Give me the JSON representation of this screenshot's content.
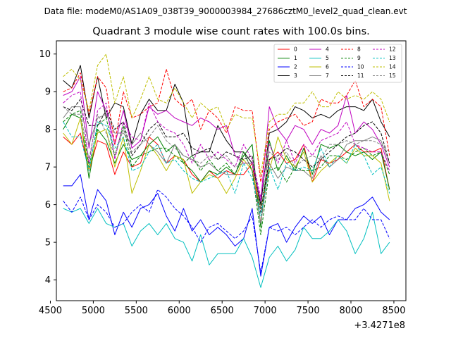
{
  "chart_data": {
    "type": "line",
    "file_label": "Data file: modeM0/AS1A09_038T39_9000003984_27686cztM0_level2_quad_clean.evt",
    "title": "Quadrant 3 module wise count rates with 100.0s bins.",
    "x_offset_label": "+3.4271e8",
    "xlim": [
      4570,
      8640
    ],
    "ylim": [
      3.45,
      10.35
    ],
    "xticks": [
      4500,
      5000,
      5500,
      6000,
      6500,
      7000,
      7500,
      8000,
      8500
    ],
    "yticks": [
      4,
      5,
      6,
      7,
      8,
      9,
      10
    ],
    "x": [
      4650,
      4750,
      4850,
      4950,
      5050,
      5150,
      5250,
      5350,
      5450,
      5550,
      5650,
      5750,
      5850,
      5950,
      6050,
      6150,
      6250,
      6350,
      6450,
      6550,
      6650,
      6750,
      6850,
      6950,
      7050,
      7150,
      7250,
      7350,
      7450,
      7550,
      7650,
      7750,
      7850,
      7950,
      8050,
      8150,
      8250,
      8350,
      8450
    ],
    "series": [
      {
        "name": "0",
        "color": "#ff0000",
        "dash": false,
        "values": [
          7.8,
          7.6,
          7.9,
          6.9,
          7.7,
          7.6,
          6.8,
          7.4,
          7.0,
          7.1,
          7.8,
          7.6,
          7.1,
          7.3,
          7.2,
          6.8,
          6.6,
          6.9,
          6.7,
          6.9,
          6.8,
          6.8,
          7.1,
          5.5,
          7.2,
          7.4,
          7.1,
          7.2,
          7.6,
          6.6,
          7.2,
          7.1,
          7.2,
          7.4,
          7.6,
          7.4,
          7.4,
          7.5,
          6.4
        ]
      },
      {
        "name": "1",
        "color": "#008000",
        "dash": false,
        "values": [
          8.0,
          8.4,
          8.3,
          6.7,
          8.0,
          7.7,
          7.1,
          7.6,
          7.2,
          7.3,
          7.6,
          7.8,
          7.4,
          7.6,
          7.1,
          6.9,
          6.6,
          6.9,
          6.8,
          7.0,
          6.8,
          7.3,
          7.6,
          5.4,
          7.7,
          6.9,
          7.3,
          6.9,
          7.5,
          6.8,
          7.6,
          7.5,
          7.6,
          7.4,
          7.3,
          7.4,
          7.2,
          7.4,
          6.4
        ]
      },
      {
        "name": "2",
        "color": "#0000ff",
        "dash": false,
        "values": [
          6.5,
          6.5,
          6.8,
          5.6,
          6.4,
          6.1,
          5.2,
          5.8,
          5.4,
          5.9,
          6.0,
          6.3,
          5.7,
          5.3,
          5.9,
          5.3,
          5.6,
          5.2,
          5.4,
          5.2,
          4.9,
          5.1,
          5.9,
          4.1,
          5.4,
          5.5,
          5.0,
          5.4,
          5.7,
          5.5,
          5.7,
          5.2,
          5.6,
          5.6,
          5.9,
          6.0,
          6.2,
          5.8,
          5.6
        ]
      },
      {
        "name": "3",
        "color": "#000000",
        "dash": false,
        "values": [
          9.3,
          9.1,
          9.7,
          8.3,
          9.4,
          8.3,
          8.7,
          8.6,
          7.6,
          8.4,
          8.8,
          8.5,
          8.5,
          9.2,
          8.7,
          7.3,
          7.4,
          7.4,
          8.1,
          7.7,
          7.4,
          7.4,
          7.1,
          6.0,
          7.9,
          8.0,
          8.2,
          8.6,
          8.5,
          8.3,
          8.4,
          8.3,
          8.5,
          8.6,
          8.6,
          8.5,
          8.8,
          8.2,
          7.8
        ]
      },
      {
        "name": "4",
        "color": "#bf00bf",
        "dash": false,
        "values": [
          8.9,
          9.0,
          9.4,
          7.5,
          9.0,
          8.5,
          7.6,
          8.5,
          7.5,
          7.7,
          8.6,
          8.4,
          8.5,
          8.3,
          8.2,
          8.1,
          8.3,
          8.2,
          8.0,
          8.1,
          7.3,
          7.1,
          7.1,
          6.1,
          8.6,
          8.0,
          7.7,
          8.1,
          8.0,
          7.6,
          8.0,
          7.9,
          8.1,
          8.9,
          7.9,
          8.2,
          8.0,
          7.6,
          7.0
        ]
      },
      {
        "name": "5",
        "color": "#00bfbf",
        "dash": false,
        "values": [
          5.9,
          5.8,
          5.9,
          5.5,
          5.9,
          5.5,
          5.4,
          5.5,
          4.9,
          5.3,
          5.5,
          5.2,
          5.5,
          5.1,
          5.0,
          4.5,
          5.2,
          4.4,
          4.7,
          4.7,
          4.7,
          5.1,
          4.6,
          3.8,
          4.6,
          4.9,
          4.5,
          4.8,
          5.4,
          5.1,
          5.1,
          5.3,
          5.6,
          5.3,
          4.7,
          5.1,
          5.8,
          4.7,
          5.0
        ]
      },
      {
        "name": "6",
        "color": "#bfbf00",
        "dash": false,
        "values": [
          7.9,
          7.6,
          8.3,
          6.9,
          7.9,
          8.0,
          7.0,
          7.8,
          6.3,
          6.9,
          7.6,
          7.3,
          6.9,
          7.3,
          7.2,
          6.3,
          6.6,
          6.8,
          6.7,
          6.3,
          6.7,
          7.2,
          6.9,
          5.9,
          6.9,
          7.8,
          7.2,
          7.0,
          7.4,
          6.6,
          6.9,
          7.1,
          7.3,
          7.1,
          7.5,
          7.3,
          7.3,
          7.1,
          6.1
        ]
      },
      {
        "name": "7",
        "color": "#808080",
        "dash": false,
        "values": [
          8.3,
          8.6,
          8.6,
          7.6,
          8.3,
          8.4,
          7.9,
          7.9,
          7.6,
          7.9,
          7.6,
          7.4,
          7.1,
          7.6,
          7.3,
          7.2,
          7.0,
          7.1,
          6.9,
          6.8,
          6.8,
          7.4,
          6.9,
          5.5,
          7.1,
          6.7,
          7.0,
          6.9,
          6.9,
          6.7,
          7.3,
          7.0,
          7.2,
          7.6,
          7.7,
          7.7,
          7.8,
          7.7,
          7.1
        ]
      },
      {
        "name": "8",
        "color": "#ff0000",
        "dash": true,
        "values": [
          9.0,
          9.1,
          9.5,
          8.4,
          9.4,
          9.1,
          7.6,
          9.0,
          8.3,
          8.4,
          8.6,
          8.7,
          9.6,
          8.8,
          8.6,
          8.8,
          8.0,
          8.5,
          8.3,
          7.9,
          8.6,
          8.5,
          8.5,
          6.6,
          8.0,
          8.2,
          8.3,
          8.4,
          8.1,
          8.2,
          8.8,
          8.7,
          8.7,
          8.9,
          9.3,
          8.6,
          8.8,
          8.6,
          7.3
        ]
      },
      {
        "name": "9",
        "color": "#008000",
        "dash": true,
        "values": [
          8.2,
          8.4,
          8.5,
          7.0,
          8.1,
          8.3,
          7.3,
          8.1,
          7.0,
          7.3,
          7.4,
          7.5,
          7.5,
          7.3,
          7.1,
          7.3,
          6.9,
          7.2,
          6.9,
          7.1,
          6.8,
          7.4,
          6.9,
          5.2,
          6.9,
          7.0,
          6.6,
          7.0,
          6.9,
          6.9,
          7.0,
          7.3,
          7.3,
          7.2,
          7.4,
          7.5,
          7.3,
          7.4,
          6.8
        ]
      },
      {
        "name": "10",
        "color": "#0000ff",
        "dash": true,
        "values": [
          6.1,
          5.8,
          6.2,
          5.6,
          6.0,
          5.8,
          5.4,
          5.5,
          5.8,
          6.0,
          5.8,
          6.4,
          6.2,
          5.9,
          5.7,
          5.4,
          5.0,
          5.4,
          5.5,
          5.3,
          5.1,
          5.3,
          5.7,
          4.2,
          5.4,
          5.3,
          5.4,
          5.2,
          5.4,
          5.6,
          5.4,
          5.6,
          5.7,
          5.6,
          5.6,
          5.9,
          5.6,
          5.6,
          5.1
        ]
      },
      {
        "name": "11",
        "color": "#000000",
        "dash": true,
        "values": [
          8.6,
          8.5,
          8.8,
          8.1,
          8.1,
          8.5,
          8.0,
          8.2,
          7.3,
          7.6,
          8.0,
          8.2,
          7.8,
          7.8,
          7.9,
          7.5,
          7.4,
          7.5,
          7.2,
          7.4,
          7.3,
          7.2,
          7.3,
          5.8,
          7.2,
          7.3,
          7.5,
          7.4,
          7.2,
          7.0,
          7.2,
          7.4,
          7.6,
          7.8,
          7.9,
          8.1,
          8.2,
          7.9,
          7.1
        ]
      },
      {
        "name": "12",
        "color": "#bf00bf",
        "dash": true,
        "values": [
          8.7,
          8.9,
          9.0,
          7.1,
          8.5,
          8.7,
          7.2,
          8.2,
          7.8,
          7.7,
          8.7,
          8.2,
          8.0,
          7.9,
          7.6,
          7.1,
          7.6,
          7.2,
          7.4,
          7.2,
          7.0,
          7.6,
          7.2,
          6.2,
          7.6,
          7.1,
          7.7,
          7.1,
          7.6,
          7.3,
          7.7,
          7.8,
          7.9,
          8.2,
          7.6,
          7.5,
          7.4,
          7.4,
          6.9
        ]
      },
      {
        "name": "13",
        "color": "#00bfbf",
        "dash": true,
        "values": [
          8.2,
          7.8,
          7.8,
          6.9,
          8.2,
          8.1,
          7.5,
          7.8,
          6.9,
          7.0,
          7.4,
          7.6,
          7.1,
          7.2,
          6.9,
          6.7,
          6.6,
          6.7,
          6.8,
          6.9,
          6.3,
          7.1,
          6.7,
          5.7,
          7.0,
          6.4,
          7.1,
          6.9,
          7.0,
          6.9,
          7.5,
          7.0,
          7.3,
          7.1,
          7.6,
          7.3,
          6.8,
          7.0,
          6.3
        ]
      },
      {
        "name": "14",
        "color": "#bfbf00",
        "dash": true,
        "values": [
          9.4,
          9.6,
          9.3,
          8.5,
          9.7,
          10.0,
          8.7,
          9.4,
          8.3,
          8.8,
          9.4,
          8.8,
          8.7,
          9.1,
          8.7,
          8.3,
          8.7,
          8.5,
          8.6,
          8.0,
          8.4,
          8.3,
          8.3,
          6.8,
          8.2,
          8.4,
          8.4,
          8.7,
          8.7,
          9.0,
          8.6,
          8.6,
          9.0,
          8.8,
          8.9,
          8.8,
          9.0,
          8.8,
          8.2
        ]
      },
      {
        "name": "15",
        "color": "#808080",
        "dash": true,
        "values": [
          8.6,
          8.4,
          8.4,
          7.2,
          8.4,
          7.9,
          7.3,
          8.0,
          7.4,
          7.6,
          7.8,
          8.1,
          7.7,
          7.5,
          7.3,
          7.2,
          7.1,
          7.3,
          7.2,
          7.3,
          7.0,
          7.1,
          7.1,
          5.9,
          7.4,
          7.2,
          7.4,
          7.0,
          7.2,
          7.3,
          7.2,
          7.6,
          7.6,
          7.7,
          7.6,
          7.7,
          7.7,
          7.6,
          7.4
        ]
      }
    ]
  }
}
